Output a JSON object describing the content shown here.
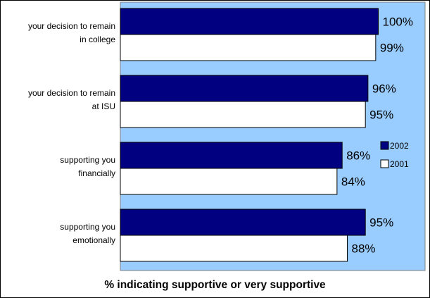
{
  "chart_data": {
    "type": "bar",
    "orientation": "horizontal",
    "categories": [
      [
        "your decision to remain",
        "in college"
      ],
      [
        "your decision to remain",
        "at ISU"
      ],
      [
        "supporting you",
        "financially"
      ],
      [
        "supporting you",
        "emotionally"
      ]
    ],
    "series": [
      {
        "name": "2002",
        "values": [
          100,
          96,
          86,
          95
        ],
        "labels": [
          "100%",
          "96%",
          "86%",
          "95%"
        ],
        "color": "#000080"
      },
      {
        "name": "2001",
        "values": [
          99,
          95,
          84,
          88
        ],
        "labels": [
          "99%",
          "95%",
          "84%",
          "88%"
        ],
        "color": "#ffffff"
      }
    ],
    "xlabel": "% indicating supportive or very supportive",
    "xlim": [
      0,
      116
    ],
    "plot_background": "#99ccff",
    "grid": false,
    "legend_position": "right"
  }
}
